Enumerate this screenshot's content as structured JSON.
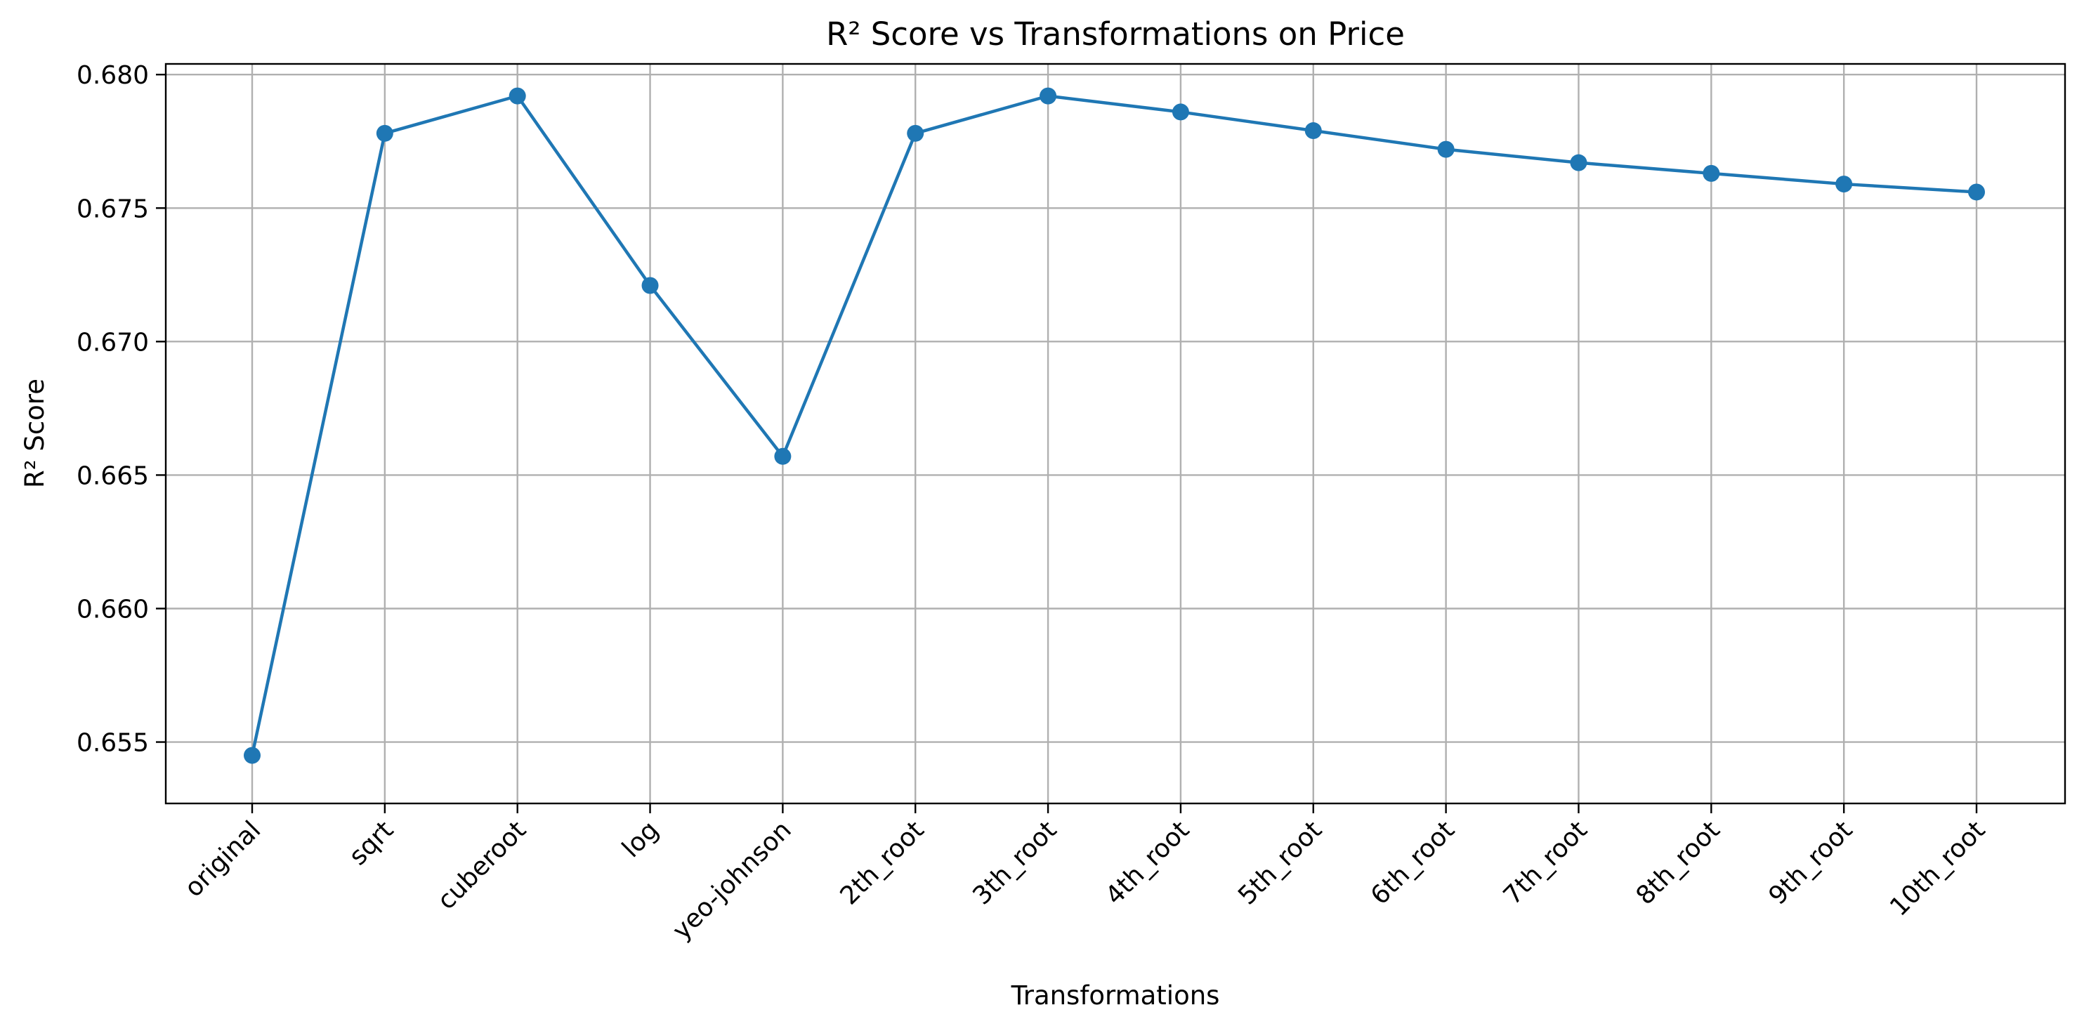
{
  "chart_data": {
    "type": "line",
    "title": "R² Score vs Transformations on Price",
    "xlabel": "Transformations",
    "ylabel": "R² Score",
    "categories": [
      "original",
      "sqrt",
      "cuberoot",
      "log",
      "yeo-johnson",
      "2th_root",
      "3th_root",
      "4th_root",
      "5th_root",
      "6th_root",
      "7th_root",
      "8th_root",
      "9th_root",
      "10th_root"
    ],
    "series": [
      {
        "values": [
          0.6545,
          0.6778,
          0.6792,
          0.6721,
          0.6657,
          0.6778,
          0.6792,
          0.6786,
          0.6779,
          0.6772,
          0.6767,
          0.6763,
          0.6759,
          0.6756
        ],
        "color": "#1f77b4",
        "marker": "circle"
      }
    ],
    "ylim": [
      0.6527,
      0.6804
    ],
    "yticks": [
      "0.655",
      "0.660",
      "0.665",
      "0.670",
      "0.675",
      "0.680"
    ],
    "grid": true,
    "legend": "none"
  }
}
